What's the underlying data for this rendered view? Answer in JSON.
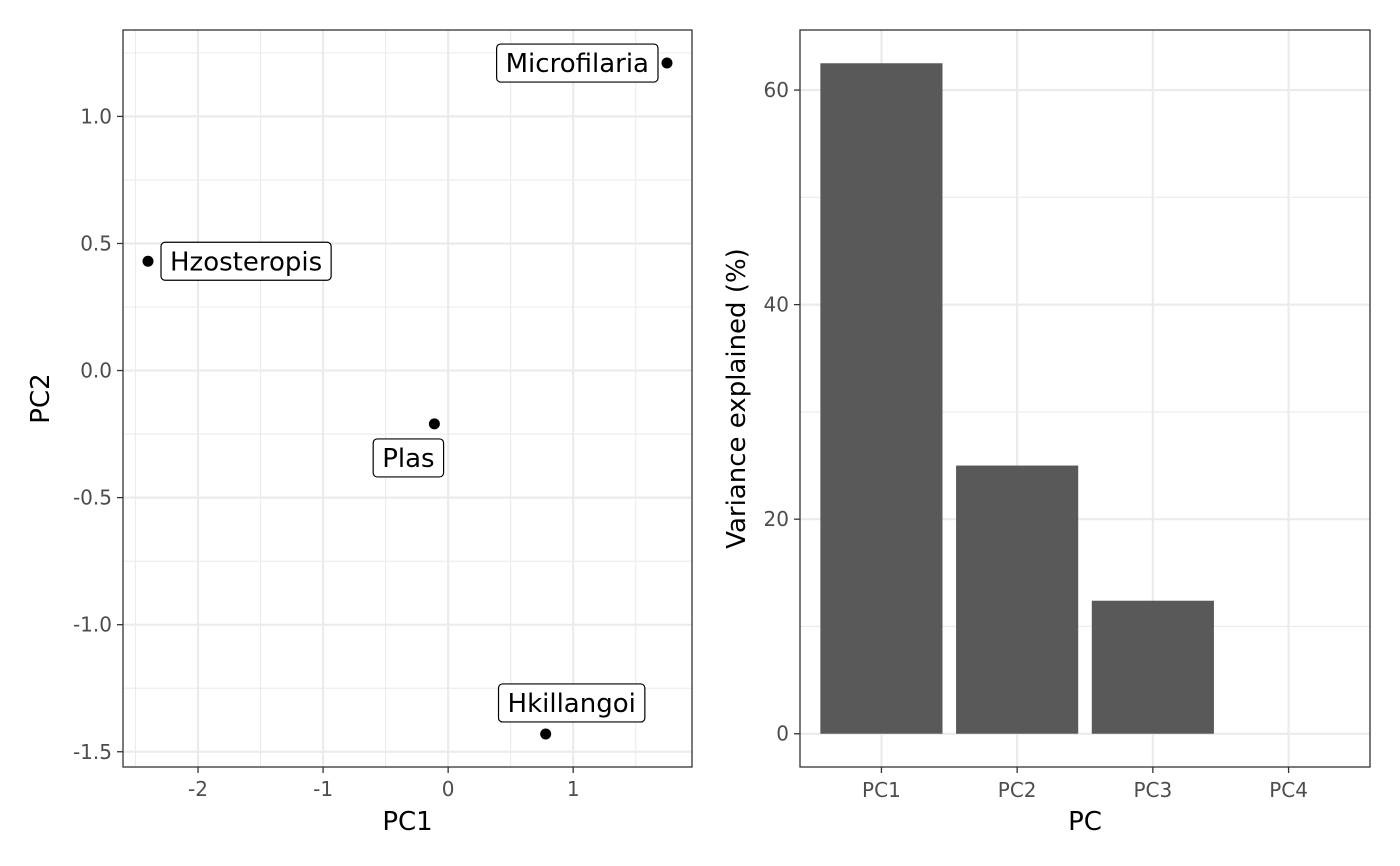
{
  "chart_data": [
    {
      "type": "scatter",
      "xlabel": "PC1",
      "ylabel": "PC2",
      "xlim": [
        -2.6,
        1.95
      ],
      "ylim": [
        -1.56,
        1.34
      ],
      "x_ticks": [
        -2,
        -1,
        0,
        1
      ],
      "y_ticks": [
        -1.5,
        -1.0,
        -0.5,
        0.0,
        0.5,
        1.0
      ],
      "x_tick_labels": [
        "-2",
        "-1",
        "0",
        "1"
      ],
      "y_tick_labels": [
        "-1.5",
        "-1.0",
        "-0.5",
        "0.0",
        "0.5",
        "1.0"
      ],
      "grid": true,
      "points": [
        {
          "label": "Microfilaria",
          "x": 1.75,
          "y": 1.21
        },
        {
          "label": "Hzosteropis",
          "x": -2.4,
          "y": 0.43
        },
        {
          "label": "Plas",
          "x": -0.11,
          "y": -0.21
        },
        {
          "label": "Hkillangoi",
          "x": 0.78,
          "y": -1.43
        }
      ]
    },
    {
      "type": "bar",
      "xlabel": "PC",
      "ylabel": "Variance explained (%)",
      "categories": [
        "PC1",
        "PC2",
        "PC3",
        "PC4"
      ],
      "values": [
        62.5,
        25.0,
        12.4,
        0.0
      ],
      "ylim": [
        -3.1,
        65.6
      ],
      "y_ticks": [
        0,
        20,
        40,
        60
      ],
      "y_tick_labels": [
        "0",
        "20",
        "40",
        "60"
      ],
      "bar_color": "#595959",
      "grid": true
    }
  ]
}
